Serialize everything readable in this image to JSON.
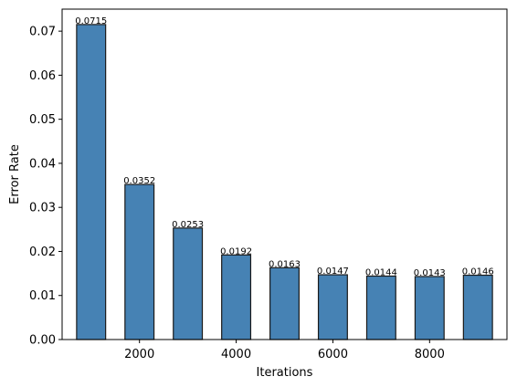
{
  "chart_data": {
    "type": "bar",
    "x": [
      1000,
      2000,
      3000,
      4000,
      5000,
      6000,
      7000,
      8000,
      9000
    ],
    "values": [
      0.0715,
      0.0352,
      0.0253,
      0.0192,
      0.0163,
      0.0147,
      0.0144,
      0.0143,
      0.0146
    ],
    "value_labels": [
      "0.0715",
      "0.0352",
      "0.0253",
      "0.0192",
      "0.0163",
      "0.0147",
      "0.0144",
      "0.0143",
      "0.0146"
    ],
    "xlabel": "Iterations",
    "ylabel": "Error Rate",
    "xlim": [
      400,
      9600
    ],
    "ylim": [
      0,
      0.075
    ],
    "xticks": [
      2000,
      4000,
      6000,
      8000
    ],
    "xtick_labels": [
      "2000",
      "4000",
      "6000",
      "8000"
    ],
    "yticks": [
      0,
      0.01,
      0.02,
      0.03,
      0.04,
      0.05,
      0.06,
      0.07
    ],
    "ytick_labels": [
      "0.00",
      "0.01",
      "0.02",
      "0.03",
      "0.04",
      "0.05",
      "0.06",
      "0.07"
    ],
    "bar_width": 600,
    "grid": false,
    "colors": {
      "bar_fill": "#4682b4",
      "bar_edge": "#1a1a1a"
    }
  }
}
